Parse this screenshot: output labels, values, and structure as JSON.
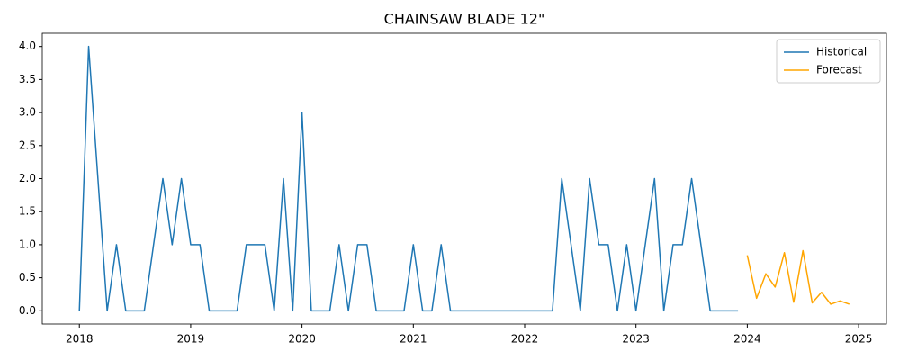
{
  "chart_data": {
    "type": "line",
    "title": "CHAINSAW BLADE 12\"",
    "xlim": [
      "2017-09",
      "2025-04"
    ],
    "xticks": [
      "2018",
      "2019",
      "2020",
      "2021",
      "2022",
      "2023",
      "2024",
      "2025"
    ],
    "ylim": [
      -0.2,
      4.2
    ],
    "yticks": [
      {
        "value": 0,
        "label": "0.0"
      },
      {
        "value": 0.5,
        "label": "0.5"
      },
      {
        "value": 1,
        "label": "1.0"
      },
      {
        "value": 1.5,
        "label": "1.5"
      },
      {
        "value": 2,
        "label": "2.0"
      },
      {
        "value": 2.5,
        "label": "2.5"
      },
      {
        "value": 3,
        "label": "3.0"
      },
      {
        "value": 3.5,
        "label": "3.5"
      },
      {
        "value": 4,
        "label": "4.0"
      }
    ],
    "legend": "upper right",
    "series": [
      {
        "name": "Historical",
        "color": "#1f77b4",
        "x": [
          "2018-01",
          "2018-02",
          "2018-03",
          "2018-04",
          "2018-05",
          "2018-06",
          "2018-07",
          "2018-08",
          "2018-09",
          "2018-10",
          "2018-11",
          "2018-12",
          "2019-01",
          "2019-02",
          "2019-03",
          "2019-04",
          "2019-05",
          "2019-06",
          "2019-07",
          "2019-08",
          "2019-09",
          "2019-10",
          "2019-11",
          "2019-12",
          "2020-01",
          "2020-02",
          "2020-03",
          "2020-04",
          "2020-05",
          "2020-06",
          "2020-07",
          "2020-08",
          "2020-09",
          "2020-10",
          "2020-11",
          "2020-12",
          "2021-01",
          "2021-02",
          "2021-03",
          "2021-04",
          "2021-05",
          "2021-06",
          "2021-07",
          "2021-08",
          "2021-09",
          "2021-10",
          "2021-11",
          "2021-12",
          "2022-01",
          "2022-02",
          "2022-03",
          "2022-04",
          "2022-05",
          "2022-06",
          "2022-07",
          "2022-08",
          "2022-09",
          "2022-10",
          "2022-11",
          "2022-12",
          "2023-01",
          "2023-02",
          "2023-03",
          "2023-04",
          "2023-05",
          "2023-06",
          "2023-07",
          "2023-08",
          "2023-09",
          "2023-10",
          "2023-11",
          "2023-12"
        ],
        "values": [
          0,
          4,
          2,
          0,
          1,
          0,
          0,
          0,
          1,
          2,
          1,
          2,
          1,
          1,
          0,
          0,
          0,
          0,
          1,
          1,
          1,
          0,
          2,
          0,
          3,
          0,
          0,
          0,
          1,
          0,
          1,
          1,
          0,
          0,
          0,
          0,
          1,
          0,
          0,
          1,
          0,
          0,
          0,
          0,
          0,
          0,
          0,
          0,
          0,
          0,
          0,
          0,
          2,
          1,
          0,
          2,
          1,
          1,
          0,
          1,
          0,
          1,
          2,
          0,
          1,
          1,
          2,
          1,
          0,
          0,
          0,
          0
        ]
      },
      {
        "name": "Forecast",
        "color": "#ffa500",
        "x": [
          "2024-01",
          "2024-02",
          "2024-03",
          "2024-04",
          "2024-05",
          "2024-06",
          "2024-07",
          "2024-08",
          "2024-09",
          "2024-10",
          "2024-11",
          "2024-12"
        ],
        "values": [
          0.84,
          0.19,
          0.56,
          0.36,
          0.88,
          0.13,
          0.91,
          0.12,
          0.28,
          0.1,
          0.15,
          0.1
        ]
      }
    ]
  }
}
